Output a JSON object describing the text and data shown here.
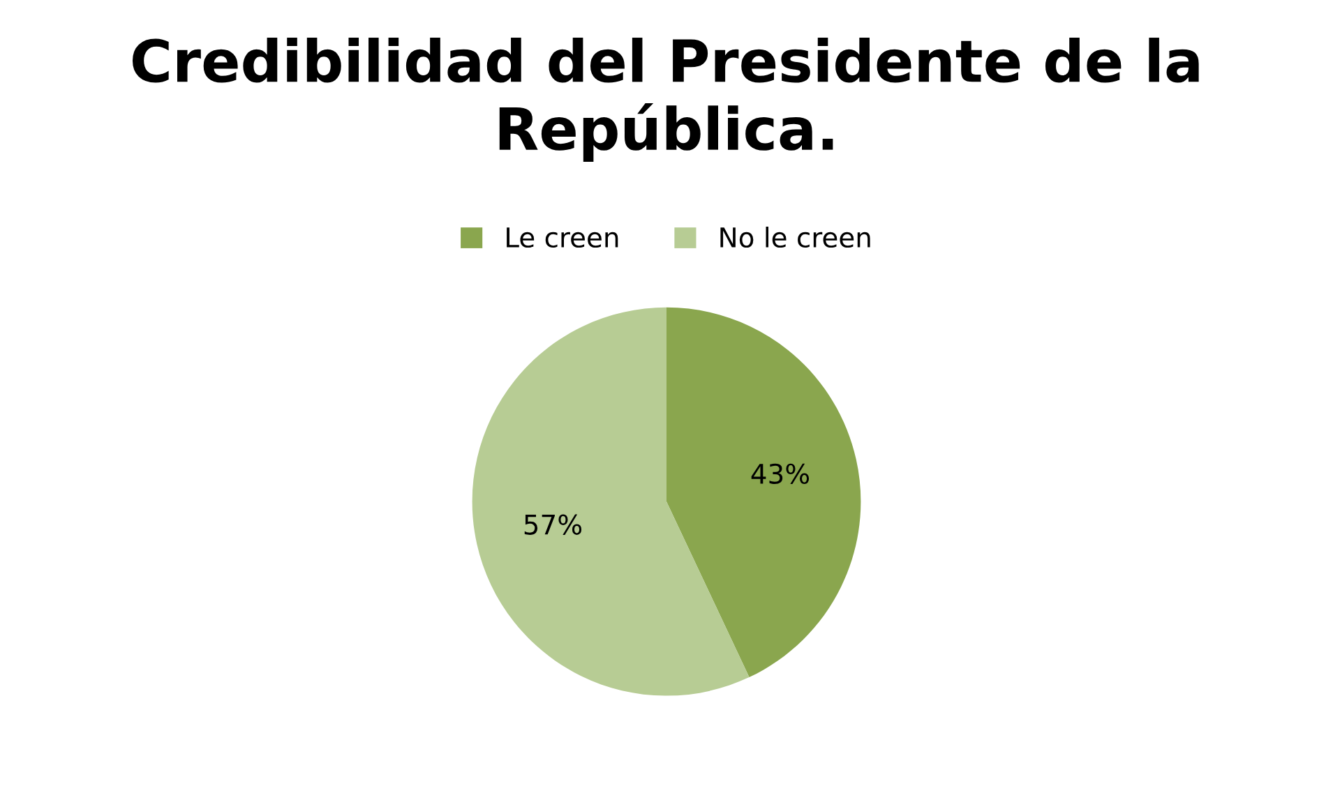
{
  "chart_data": {
    "type": "pie",
    "title": "Credibilidad del Presidente de la República.",
    "categories": [
      "Le creen",
      "No le creen"
    ],
    "values": [
      43,
      57
    ],
    "colors": [
      "#8aa64e",
      "#b7cc94"
    ],
    "value_labels": [
      "43%",
      "57%"
    ],
    "legend": "top"
  }
}
